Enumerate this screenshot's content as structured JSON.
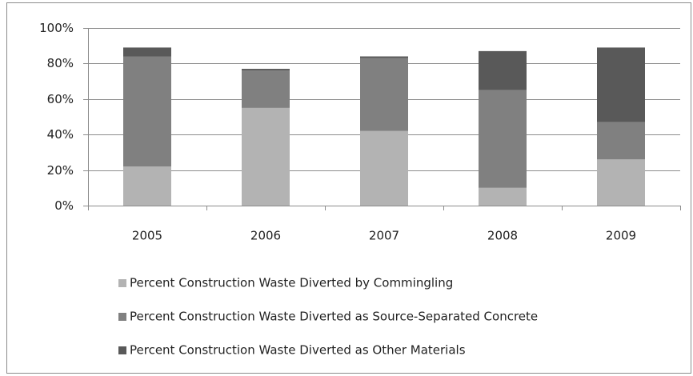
{
  "chart_data": {
    "type": "stacked_bar",
    "categories": [
      "2005",
      "2006",
      "2007",
      "2008",
      "2009"
    ],
    "series": [
      {
        "name": "Percent Construction Waste Diverted by Commingling",
        "color": "#b3b3b3",
        "values": [
          22,
          55,
          42,
          10,
          26
        ]
      },
      {
        "name": "Percent Construction Waste Diverted as Source-Separated Concrete",
        "color": "#808080",
        "values": [
          62,
          21,
          41,
          55,
          21
        ]
      },
      {
        "name": "Percent Construction Waste Diverted as Other Materials",
        "color": "#595959",
        "values": [
          5,
          1,
          1,
          22,
          42
        ]
      }
    ],
    "ylim": [
      0,
      100
    ],
    "yticks": [
      {
        "value": 0,
        "label": "0%"
      },
      {
        "value": 20,
        "label": "20%"
      },
      {
        "value": 40,
        "label": "40%"
      },
      {
        "value": 60,
        "label": "60%"
      },
      {
        "value": 80,
        "label": "80%"
      },
      {
        "value": 100,
        "label": "100%"
      }
    ],
    "grid": true,
    "legend": "bottom"
  }
}
